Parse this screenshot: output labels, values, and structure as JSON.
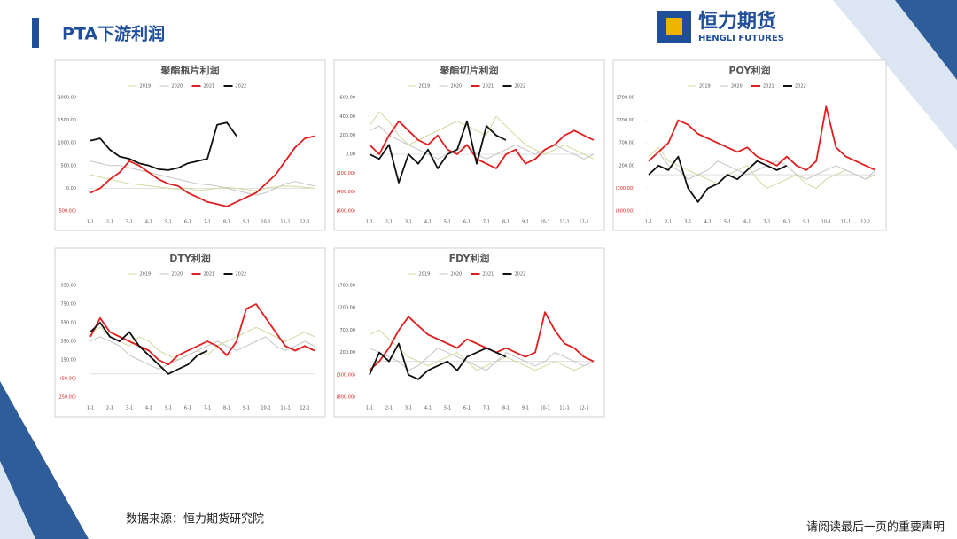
{
  "header": {
    "title": "PTA下游利润",
    "logo_cn": "恒力期货",
    "logo_en": "HENGLI FUTURES"
  },
  "footer": {
    "source": "数据来源：恒力期货研究院",
    "disclaimer": "请阅读最后一页的重要声明"
  },
  "chart_data": [
    {
      "type": "line",
      "title": "聚酯瓶片利润",
      "categories": [
        "1-1",
        null,
        "2-1",
        null,
        "3-1",
        null,
        "4-1",
        null,
        "5-1",
        null,
        "6-1",
        null,
        "7-1",
        null,
        "8-1",
        null,
        "9-1",
        null,
        "10-1",
        null,
        "11-1",
        null,
        "12-1",
        null
      ],
      "ylim": [
        -500,
        2000
      ],
      "yticks": [
        {
          "value": 2000,
          "label": "2000.00"
        },
        {
          "value": 1500,
          "label": "1500.00"
        },
        {
          "value": 1000,
          "label": "1000.00"
        },
        {
          "value": 500,
          "label": "500.00"
        },
        {
          "value": 0,
          "label": "0.00"
        },
        {
          "value": -500,
          "label": "(500.00)"
        }
      ],
      "series": [
        {
          "name": "2019",
          "color": "#d3d99c",
          "values": [
            300,
            250,
            200,
            150,
            100,
            80,
            50,
            30,
            0,
            -20,
            0,
            -50,
            -30,
            0,
            20,
            0,
            -30,
            -50,
            0,
            30,
            50,
            40,
            20,
            0
          ]
        },
        {
          "name": "2020",
          "color": "#c4c4c4",
          "values": [
            600,
            550,
            500,
            500,
            450,
            400,
            350,
            300,
            250,
            200,
            150,
            100,
            80,
            50,
            0,
            -50,
            -100,
            -150,
            -100,
            0,
            100,
            150,
            100,
            50
          ]
        },
        {
          "name": "2021",
          "color": "#e01f1f",
          "values": [
            -100,
            0,
            200,
            350,
            600,
            500,
            350,
            200,
            100,
            50,
            -100,
            -200,
            -300,
            -350,
            -400,
            -300,
            -200,
            -100,
            100,
            300,
            600,
            900,
            1100,
            1150
          ]
        },
        {
          "name": "2022",
          "color": "#111111",
          "values": [
            1050,
            1100,
            850,
            700,
            650,
            550,
            500,
            420,
            400,
            450,
            550,
            600,
            650,
            1400,
            1450,
            1150,
            null,
            null,
            null,
            null,
            null,
            null,
            null,
            null
          ]
        }
      ]
    },
    {
      "type": "line",
      "title": "聚酯切片利润",
      "categories": [
        "1-1",
        null,
        "2-1",
        null,
        "3-1",
        null,
        "4-1",
        null,
        "5-1",
        null,
        "6-1",
        null,
        "7-1",
        null,
        "8-1",
        null,
        "9-1",
        null,
        "10-1",
        null,
        "11-1",
        null,
        "12-1",
        null
      ],
      "ylim": [
        -600,
        600
      ],
      "yticks": [
        {
          "value": 600,
          "label": "600.00"
        },
        {
          "value": 400,
          "label": "400.00"
        },
        {
          "value": 200,
          "label": "200.00"
        },
        {
          "value": 0,
          "label": "0.00"
        },
        {
          "value": -200,
          "label": "(200.00)"
        },
        {
          "value": -400,
          "label": "(400.00)"
        },
        {
          "value": -600,
          "label": "(600.00)"
        }
      ],
      "series": [
        {
          "name": "2019",
          "color": "#d3d99c",
          "values": [
            300,
            450,
            350,
            200,
            100,
            150,
            200,
            250,
            300,
            350,
            300,
            250,
            200,
            400,
            300,
            200,
            100,
            50,
            0,
            50,
            100,
            50,
            0,
            -50
          ]
        },
        {
          "name": "2020",
          "color": "#c4c4c4",
          "values": [
            250,
            300,
            200,
            150,
            100,
            50,
            0,
            -50,
            0,
            50,
            100,
            0,
            -50,
            0,
            50,
            100,
            50,
            0,
            50,
            100,
            50,
            0,
            -50,
            0
          ]
        },
        {
          "name": "2021",
          "color": "#e01f1f",
          "values": [
            100,
            0,
            200,
            350,
            250,
            150,
            100,
            200,
            50,
            0,
            100,
            -50,
            -100,
            -150,
            0,
            50,
            -100,
            -50,
            50,
            100,
            200,
            250,
            200,
            150
          ]
        },
        {
          "name": "2022",
          "color": "#111111",
          "values": [
            0,
            -50,
            100,
            -300,
            0,
            -100,
            50,
            -150,
            0,
            50,
            350,
            -100,
            300,
            200,
            150,
            null,
            null,
            null,
            null,
            null,
            null,
            null,
            null,
            null
          ]
        }
      ]
    },
    {
      "type": "line",
      "title": "POY利润",
      "categories": [
        "1-1",
        null,
        "2-1",
        null,
        "3-1",
        null,
        "4-1",
        null,
        "5-1",
        null,
        "6-1",
        null,
        "7-1",
        null,
        "8-1",
        null,
        "9-1",
        null,
        "10-1",
        null,
        "11-1",
        null,
        "12-1",
        null
      ],
      "ylim": [
        -800,
        1700
      ],
      "yticks": [
        {
          "value": 1700,
          "label": "1700.00"
        },
        {
          "value": 1200,
          "label": "1200.00"
        },
        {
          "value": 700,
          "label": "700.00"
        },
        {
          "value": 200,
          "label": "200.00"
        },
        {
          "value": -300,
          "label": "(300.00)"
        },
        {
          "value": -800,
          "label": "(800.00)"
        }
      ],
      "series": [
        {
          "name": "2019",
          "color": "#d3d99c",
          "values": [
            400,
            600,
            300,
            200,
            100,
            0,
            -100,
            -200,
            0,
            100,
            200,
            -100,
            -300,
            -200,
            -100,
            0,
            -200,
            -300,
            -100,
            0,
            100,
            0,
            -100,
            0
          ]
        },
        {
          "name": "2020",
          "color": "#c4c4c4",
          "values": [
            300,
            500,
            200,
            100,
            -100,
            0,
            100,
            300,
            200,
            100,
            0,
            100,
            200,
            300,
            200,
            0,
            -100,
            0,
            100,
            200,
            100,
            0,
            -100,
            100
          ]
        },
        {
          "name": "2021",
          "color": "#e01f1f",
          "values": [
            300,
            500,
            700,
            1200,
            1100,
            900,
            800,
            700,
            600,
            500,
            600,
            400,
            300,
            200,
            400,
            200,
            100,
            300,
            1500,
            600,
            400,
            300,
            200,
            100
          ]
        },
        {
          "name": "2022",
          "color": "#111111",
          "values": [
            0,
            200,
            100,
            400,
            -300,
            -600,
            -300,
            -200,
            0,
            -100,
            100,
            300,
            200,
            100,
            200,
            null,
            null,
            null,
            null,
            null,
            null,
            null,
            null,
            null
          ]
        }
      ]
    },
    {
      "type": "line",
      "title": "DTY利润",
      "categories": [
        "1-1",
        null,
        "2-1",
        null,
        "3-1",
        null,
        "4-1",
        null,
        "5-1",
        null,
        "6-1",
        null,
        "7-1",
        null,
        "8-1",
        null,
        "9-1",
        null,
        "10-1",
        null,
        "11-1",
        null,
        "12-1",
        null
      ],
      "ylim": [
        -250,
        950
      ],
      "yticks": [
        {
          "value": 950,
          "label": "950.00"
        },
        {
          "value": 750,
          "label": "750.00"
        },
        {
          "value": 550,
          "label": "550.00"
        },
        {
          "value": 350,
          "label": "350.00"
        },
        {
          "value": 150,
          "label": "150.00"
        },
        {
          "value": -50,
          "label": "(50.00)"
        },
        {
          "value": -250,
          "label": "(250.00)"
        }
      ],
      "series": [
        {
          "name": "2019",
          "color": "#d3d99c",
          "values": [
            450,
            500,
            400,
            350,
            300,
            400,
            350,
            250,
            200,
            150,
            200,
            250,
            200,
            300,
            350,
            400,
            450,
            500,
            450,
            400,
            350,
            400,
            450,
            400
          ]
        },
        {
          "name": "2020",
          "color": "#c4c4c4",
          "values": [
            350,
            400,
            350,
            300,
            200,
            150,
            100,
            50,
            100,
            150,
            200,
            250,
            300,
            350,
            300,
            250,
            300,
            350,
            400,
            300,
            250,
            300,
            350,
            300
          ]
        },
        {
          "name": "2021",
          "color": "#e01f1f",
          "values": [
            400,
            600,
            450,
            400,
            350,
            300,
            250,
            150,
            100,
            200,
            250,
            300,
            350,
            300,
            200,
            350,
            700,
            750,
            600,
            450,
            300,
            250,
            300,
            250
          ]
        },
        {
          "name": "2022",
          "color": "#111111",
          "values": [
            450,
            550,
            400,
            350,
            450,
            300,
            200,
            100,
            0,
            50,
            100,
            200,
            250,
            null,
            null,
            null,
            null,
            null,
            null,
            null,
            null,
            null,
            null,
            null
          ]
        }
      ]
    },
    {
      "type": "line",
      "title": "FDY利润",
      "categories": [
        "1-1",
        null,
        "2-1",
        null,
        "3-1",
        null,
        "4-1",
        null,
        "5-1",
        null,
        "6-1",
        null,
        "7-1",
        null,
        "8-1",
        null,
        "9-1",
        null,
        "10-1",
        null,
        "11-1",
        null,
        "12-1",
        null
      ],
      "ylim": [
        -800,
        1700
      ],
      "yticks": [
        {
          "value": 1700,
          "label": "1700.00"
        },
        {
          "value": 1200,
          "label": "1200.00"
        },
        {
          "value": 700,
          "label": "700.00"
        },
        {
          "value": 200,
          "label": "200.00"
        },
        {
          "value": -300,
          "label": "(300.00)"
        },
        {
          "value": -800,
          "label": "(800.00)"
        }
      ],
      "series": [
        {
          "name": "2019",
          "color": "#d3d99c",
          "values": [
            600,
            700,
            500,
            300,
            100,
            0,
            -100,
            0,
            100,
            200,
            0,
            -200,
            -100,
            0,
            100,
            0,
            -100,
            -200,
            -100,
            0,
            -100,
            -200,
            -100,
            0
          ]
        },
        {
          "name": "2020",
          "color": "#c4c4c4",
          "values": [
            300,
            200,
            100,
            0,
            -200,
            -100,
            100,
            300,
            200,
            100,
            0,
            -100,
            -200,
            0,
            200,
            100,
            0,
            -100,
            0,
            200,
            100,
            0,
            -100,
            0
          ]
        },
        {
          "name": "2021",
          "color": "#e01f1f",
          "values": [
            -200,
            0,
            300,
            700,
            1000,
            800,
            600,
            500,
            400,
            300,
            500,
            400,
            300,
            200,
            300,
            200,
            100,
            200,
            1100,
            700,
            400,
            300,
            100,
            0
          ]
        },
        {
          "name": "2022",
          "color": "#111111",
          "values": [
            -300,
            200,
            0,
            400,
            -300,
            -400,
            -200,
            -100,
            0,
            -200,
            100,
            200,
            300,
            200,
            100,
            null,
            null,
            null,
            null,
            null,
            null,
            null,
            null,
            null
          ]
        }
      ]
    }
  ]
}
